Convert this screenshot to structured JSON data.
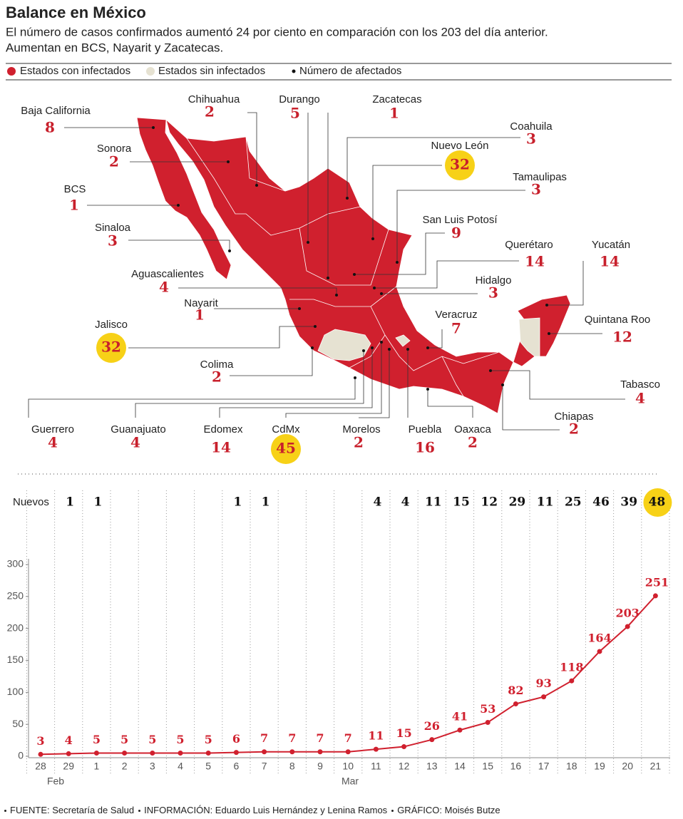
{
  "header": {
    "title": "Balance en México",
    "subtitle": [
      "El número de casos confirmados aumentó 24 por ciento en comparación con los 203 del día anterior.",
      "Aumentan en BCS, Nayarit y Zacatecas."
    ]
  },
  "legend": [
    "Estados con infectados",
    "Estados sin infectados",
    "Número de afectados"
  ],
  "map": {
    "states": [
      {
        "name": "Baja California",
        "value": 8
      },
      {
        "name": "Chihuahua",
        "value": 2
      },
      {
        "name": "Durango",
        "value": 5
      },
      {
        "name": "Zacatecas",
        "value": 1
      },
      {
        "name": "Coahuila",
        "value": 3
      },
      {
        "name": "Sonora",
        "value": 2
      },
      {
        "name": "Nuevo León",
        "value": 32,
        "highlight": true
      },
      {
        "name": "Tamaulipas",
        "value": 3
      },
      {
        "name": "BCS",
        "value": 1
      },
      {
        "name": "San Luis Potosí",
        "value": 9
      },
      {
        "name": "Sinaloa",
        "value": 3
      },
      {
        "name": "Querétaro",
        "value": 14
      },
      {
        "name": "Yucatán",
        "value": 14
      },
      {
        "name": "Aguascalientes",
        "value": 4
      },
      {
        "name": "Hidalgo",
        "value": 3
      },
      {
        "name": "Nayarit",
        "value": 1
      },
      {
        "name": "Quintana Roo",
        "value": 12
      },
      {
        "name": "Jalisco",
        "value": 32,
        "highlight": true
      },
      {
        "name": "Veracruz",
        "value": 7
      },
      {
        "name": "Colima",
        "value": 2
      },
      {
        "name": "Tabasco",
        "value": 4
      },
      {
        "name": "Chiapas",
        "value": 2
      },
      {
        "name": "Guerrero",
        "value": 4
      },
      {
        "name": "Guanajuato",
        "value": 4
      },
      {
        "name": "Edomex",
        "value": 14
      },
      {
        "name": "CdMx",
        "value": 45,
        "highlight": true
      },
      {
        "name": "Morelos",
        "value": 2
      },
      {
        "name": "Puebla",
        "value": 16
      },
      {
        "name": "Oaxaca",
        "value": 2
      }
    ]
  },
  "chart_data": {
    "type": "line",
    "categories": [
      "28",
      "29",
      "1",
      "2",
      "3",
      "4",
      "5",
      "6",
      "7",
      "8",
      "9",
      "10",
      "11",
      "12",
      "13",
      "14",
      "15",
      "16",
      "17",
      "18",
      "19",
      "20",
      "21"
    ],
    "months": [
      "Feb",
      "Mar"
    ],
    "new_cases": {
      "label": "Nuevos",
      "values": [
        null,
        1,
        1,
        null,
        null,
        null,
        null,
        1,
        1,
        null,
        null,
        null,
        4,
        4,
        11,
        15,
        12,
        29,
        11,
        25,
        46,
        39,
        48
      ]
    },
    "values": [
      3,
      4,
      5,
      5,
      5,
      5,
      5,
      6,
      7,
      7,
      7,
      7,
      11,
      15,
      26,
      41,
      53,
      82,
      93,
      118,
      164,
      203,
      251
    ],
    "color": "#d0202e",
    "ylim": [
      0,
      300
    ],
    "yticks": [
      0,
      50,
      100,
      150,
      200,
      250,
      300
    ],
    "grid": "x"
  },
  "footer": [
    "FUENTE: Secretaría de Salud",
    "INFORMACIÓN: Eduardo Luis Hernández y Lenina Ramos",
    "GRÁFICO: Moisés Butze"
  ]
}
